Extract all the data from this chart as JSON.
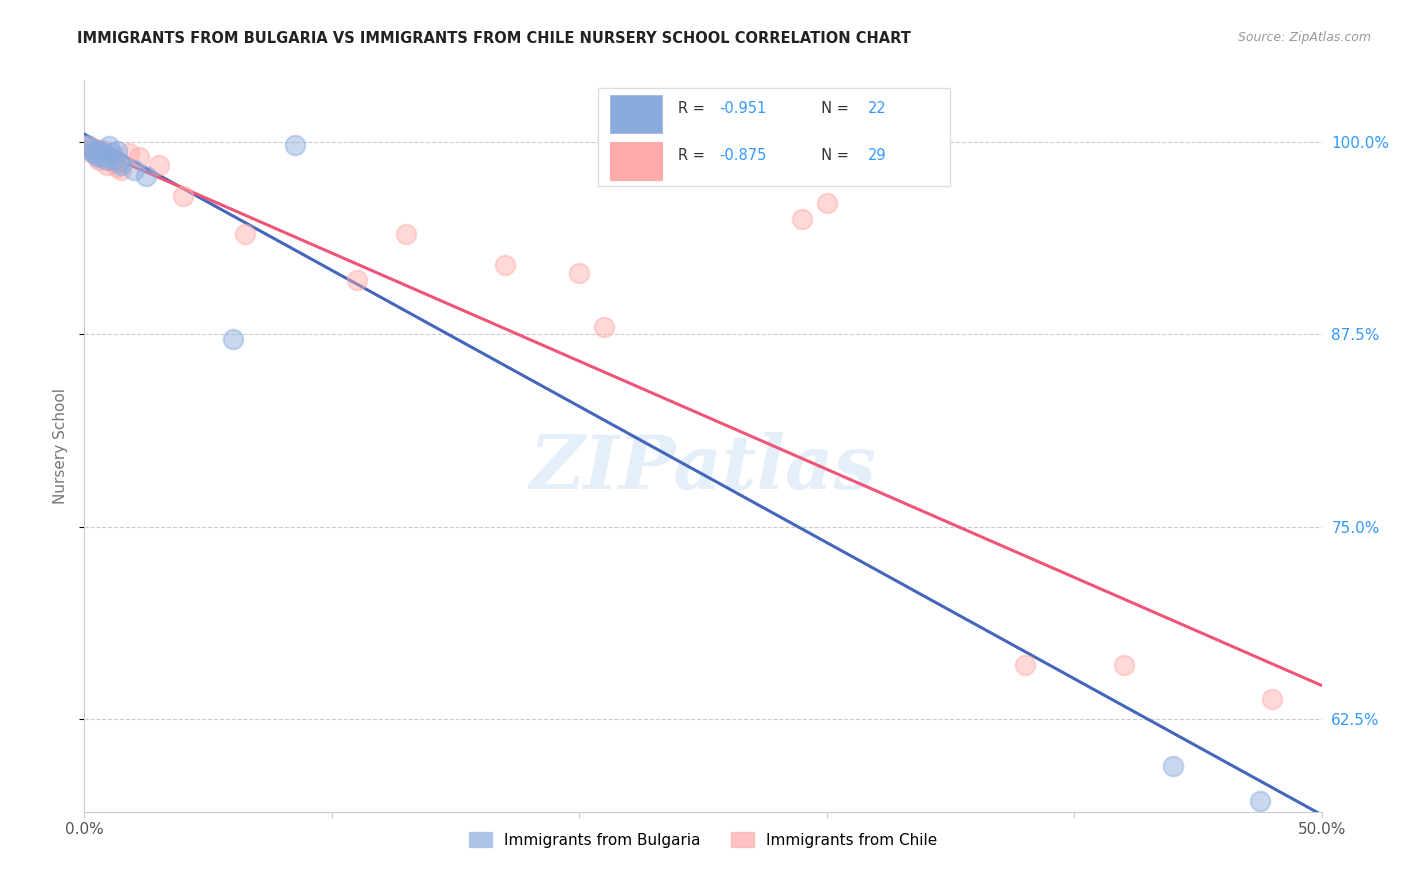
{
  "title": "IMMIGRANTS FROM BULGARIA VS IMMIGRANTS FROM CHILE NURSERY SCHOOL CORRELATION CHART",
  "source": "Source: ZipAtlas.com",
  "ylabel": "Nursery School",
  "yticks": [
    0.625,
    0.75,
    0.875,
    1.0
  ],
  "ytick_labels": [
    "62.5%",
    "75.0%",
    "87.5%",
    "100.0%"
  ],
  "xlim": [
    0.0,
    0.5
  ],
  "ylim": [
    0.565,
    1.04
  ],
  "watermark": "ZIPatlas",
  "blue_color": "#88AADD",
  "pink_color": "#FFAAAA",
  "blue_line_color": "#4466BB",
  "pink_line_color": "#EE5577",
  "bulgaria_scatter": [
    [
      0.001,
      0.998
    ],
    [
      0.002,
      0.996
    ],
    [
      0.003,
      0.994
    ],
    [
      0.004,
      0.993
    ],
    [
      0.005,
      0.991
    ],
    [
      0.006,
      0.995
    ],
    [
      0.007,
      0.99
    ],
    [
      0.008,
      0.992
    ],
    [
      0.009,
      0.988
    ],
    [
      0.01,
      0.997
    ],
    [
      0.011,
      0.993
    ],
    [
      0.012,
      0.989
    ],
    [
      0.013,
      0.994
    ],
    [
      0.014,
      0.987
    ],
    [
      0.015,
      0.985
    ],
    [
      0.02,
      0.982
    ],
    [
      0.025,
      0.978
    ],
    [
      0.06,
      0.872
    ],
    [
      0.085,
      0.998
    ],
    [
      0.44,
      0.595
    ],
    [
      0.475,
      0.572
    ]
  ],
  "chile_scatter": [
    [
      0.001,
      0.997
    ],
    [
      0.002,
      0.994
    ],
    [
      0.003,
      0.996
    ],
    [
      0.004,
      0.993
    ],
    [
      0.005,
      0.99
    ],
    [
      0.006,
      0.988
    ],
    [
      0.007,
      0.995
    ],
    [
      0.008,
      0.992
    ],
    [
      0.009,
      0.985
    ],
    [
      0.01,
      0.991
    ],
    [
      0.011,
      0.988
    ],
    [
      0.012,
      0.987
    ],
    [
      0.013,
      0.984
    ],
    [
      0.015,
      0.982
    ],
    [
      0.018,
      0.993
    ],
    [
      0.022,
      0.99
    ],
    [
      0.03,
      0.985
    ],
    [
      0.04,
      0.965
    ],
    [
      0.065,
      0.94
    ],
    [
      0.11,
      0.91
    ],
    [
      0.13,
      0.94
    ],
    [
      0.17,
      0.92
    ],
    [
      0.2,
      0.915
    ],
    [
      0.21,
      0.88
    ],
    [
      0.29,
      0.95
    ],
    [
      0.3,
      0.96
    ],
    [
      0.38,
      0.66
    ],
    [
      0.42,
      0.66
    ],
    [
      0.48,
      0.638
    ]
  ],
  "blue_line_x": [
    0.0,
    0.5
  ],
  "blue_line_y": [
    1.005,
    0.563
  ],
  "pink_line_x": [
    0.0,
    0.5
  ],
  "pink_line_y": [
    0.998,
    0.647
  ]
}
